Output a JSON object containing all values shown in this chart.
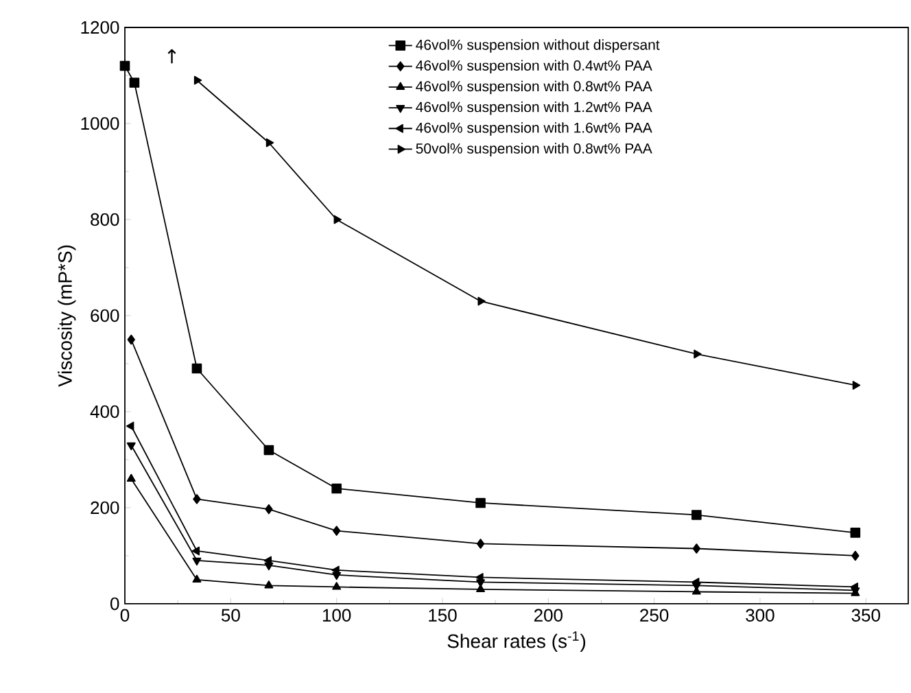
{
  "chart_data": {
    "type": "line",
    "xlabel": "Shear rates (s$^{-1}$)",
    "ylabel": "Viscosity (mP*S)",
    "xlim": [
      0,
      370
    ],
    "ylim": [
      0,
      1200
    ],
    "xticks": [
      0,
      50,
      100,
      150,
      200,
      250,
      300,
      350
    ],
    "yticks": [
      0,
      200,
      400,
      600,
      800,
      1000,
      1200
    ],
    "grid": false,
    "legend": "top right",
    "line_style": "solid",
    "series": [
      {
        "name": "46vol% suspension without dispersant",
        "color": "#000000",
        "marker": "square",
        "x": [
          0,
          4.5,
          34,
          68,
          100,
          168,
          270,
          345
        ],
        "values": [
          1120,
          1085,
          490,
          320,
          240,
          210,
          185,
          148
        ]
      },
      {
        "name": "46vol% suspension with 0.4wt% PAA",
        "color": "#000000",
        "marker": "diamond",
        "x": [
          3,
          34,
          68,
          100,
          168,
          270,
          345
        ],
        "values": [
          550,
          218,
          197,
          152,
          125,
          115,
          100
        ]
      },
      {
        "name": "46vol% suspension with 0.8wt% PAA",
        "color": "#000000",
        "marker": "triangle",
        "x": [
          3,
          34,
          68,
          100,
          168,
          270,
          345
        ],
        "values": [
          260,
          50,
          38,
          35,
          30,
          25,
          22
        ]
      },
      {
        "name": "46vol% suspension with 1.2wt% PAA",
        "color": "#000000",
        "marker": "triangle-down",
        "x": [
          3,
          34,
          68,
          100,
          168,
          270,
          345
        ],
        "values": [
          330,
          90,
          80,
          60,
          45,
          38,
          28
        ]
      },
      {
        "name": "46vol% suspension with 1.6wt% PAA",
        "color": "#000000",
        "marker": "triangle-left",
        "x": [
          3,
          34,
          68,
          100,
          168,
          270,
          345
        ],
        "values": [
          370,
          110,
          90,
          70,
          55,
          45,
          35
        ]
      },
      {
        "name": "50vol% suspension with 0.8wt% PAA",
        "color": "#000000",
        "marker": "triangle-right",
        "x": [
          34,
          68,
          100,
          168,
          270,
          345
        ],
        "values": [
          1090,
          960,
          800,
          630,
          520,
          455
        ]
      }
    ],
    "annotations": [
      "↑"
    ]
  }
}
